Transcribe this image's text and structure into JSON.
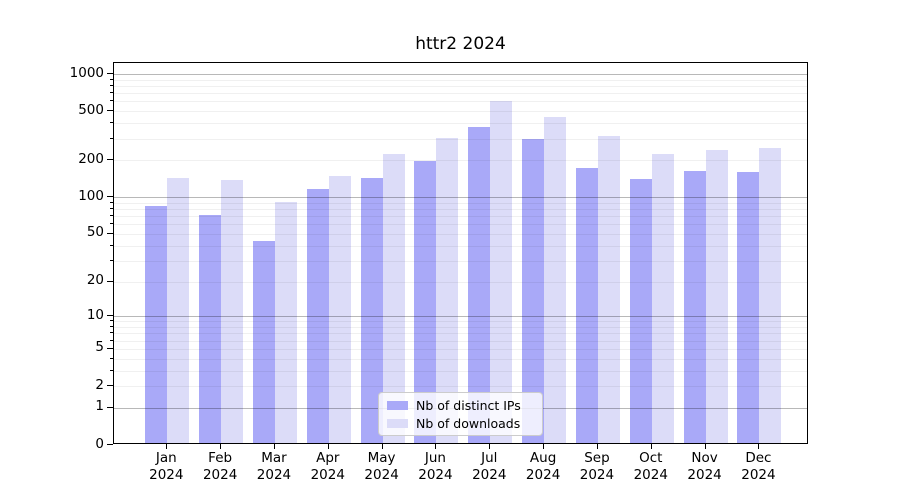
{
  "chart_data": {
    "type": "bar",
    "title": "httr2 2024",
    "scale": "log1p",
    "grid": true,
    "legend_position": "lower center",
    "categories": [
      "Jan",
      "Feb",
      "Mar",
      "Apr",
      "May",
      "Jun",
      "Jul",
      "Aug",
      "Sep",
      "Oct",
      "Nov",
      "Dec"
    ],
    "year_label": "2024",
    "series": [
      {
        "name": "Nb of distinct IPs",
        "color": "#a9a9f8",
        "values": [
          85,
          72,
          44,
          116,
          144,
          197,
          375,
          296,
          173,
          141,
          162,
          161
        ]
      },
      {
        "name": "Nb of downloads",
        "color": "#dcdcf8",
        "values": [
          142,
          137,
          91,
          150,
          223,
          304,
          605,
          448,
          314,
          226,
          241,
          251
        ]
      }
    ],
    "y_ticks": [
      0,
      1,
      2,
      5,
      10,
      20,
      50,
      100,
      200,
      500,
      1000
    ],
    "ylim": [
      0,
      1230
    ],
    "xlabel": "",
    "ylabel": ""
  }
}
